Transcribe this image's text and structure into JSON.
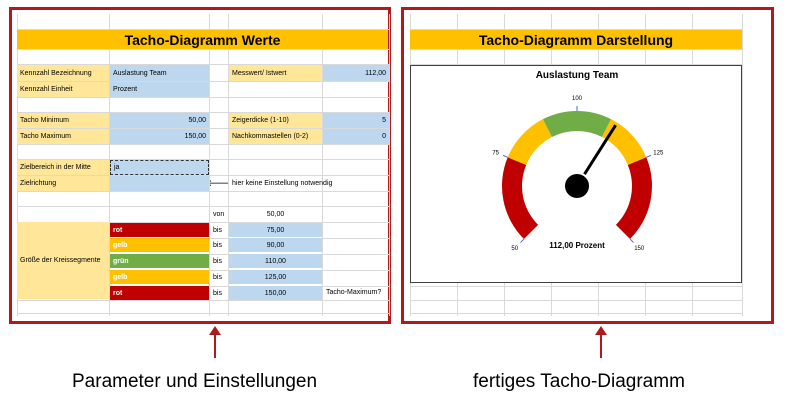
{
  "left_panel": {
    "title": "Tacho-Diagramm Werte",
    "rows": {
      "kennzahl_bezeichnung_label": "Kennzahl Bezeichnung",
      "kennzahl_bezeichnung_value": "Auslastung Team",
      "messwert_label": "Messwert/ Istwert",
      "messwert_value": "112,00",
      "kennzahl_einheit_label": "Kennzahl Einheit",
      "kennzahl_einheit_value": "Prozent",
      "tacho_minimum_label": "Tacho Minimum",
      "tacho_minimum_value": "50,00",
      "zeigerdicke_label": "Zeigerdicke (1-10)",
      "zeigerdicke_value": "5",
      "tacho_maximum_label": "Tacho Maximum",
      "tacho_maximum_value": "150,00",
      "nachkommastellen_label": "Nachkommastellen (0-2)",
      "nachkommastellen_value": "0",
      "zielbereich_label": "Zielbereich in der Mitte",
      "zielbereich_value": "ja",
      "zielrichtung_label": "Zielrichtung",
      "zielrichtung_arrow": "🡐",
      "zielrichtung_note": "hier keine Einstellung notwendig"
    },
    "segments": {
      "label": "Größe der Kreissegmente",
      "von_label": "von",
      "von_value": "50,00",
      "bis_label": "bis",
      "items": [
        {
          "name": "rot",
          "color": "#c00000",
          "value": "75,00"
        },
        {
          "name": "gelb",
          "color": "#ffc000",
          "value": "90,00"
        },
        {
          "name": "grün",
          "color": "#70ad47",
          "value": "110,00"
        },
        {
          "name": "gelb",
          "color": "#ffc000",
          "value": "125,00"
        },
        {
          "name": "rot",
          "color": "#c00000",
          "value": "150,00"
        }
      ],
      "max_note": "Tacho-Maximum?"
    }
  },
  "right_panel": {
    "title": "Tacho-Diagramm Darstellung",
    "chart_title": "Auslastung Team",
    "tick_labels": [
      "50",
      "75",
      "100",
      "125",
      "150"
    ],
    "reading_label": "112,00 Prozent"
  },
  "chart_data": {
    "type": "gauge",
    "title": "Auslastung Team",
    "min": 50,
    "max": 150,
    "value": 112,
    "ticks": [
      50,
      75,
      100,
      125,
      150
    ],
    "bands": [
      {
        "from": 50,
        "to": 75,
        "color": "#c00000"
      },
      {
        "from": 75,
        "to": 90,
        "color": "#ffc000"
      },
      {
        "from": 90,
        "to": 110,
        "color": "#70ad47"
      },
      {
        "from": 110,
        "to": 125,
        "color": "#ffc000"
      },
      {
        "from": 125,
        "to": 150,
        "color": "#c00000"
      }
    ],
    "needle_color": "#000000",
    "reading": "112,00 Prozent"
  },
  "captions": {
    "left": "Parameter und Einstellungen",
    "right": "fertiges Tacho-Diagramm"
  },
  "colors": {
    "frame": "#b01a1a",
    "title_bar": "#ffc000",
    "label_bg": "#ffe699",
    "input_bg": "#bdd7ee"
  }
}
